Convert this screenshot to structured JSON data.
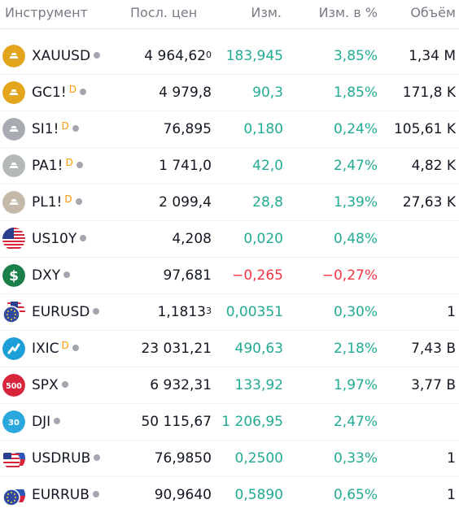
{
  "columns": {
    "symbol": "Инструмент",
    "last": "Посл. цен",
    "change": "Изм.",
    "change_pct": "Изм. в %",
    "volume": "Объём"
  },
  "colors": {
    "positive": "#22ab94",
    "negative": "#f23645",
    "delayed": "#ff9800"
  },
  "rows": [
    {
      "symbol": "XAUUSD",
      "delayed_mark": "",
      "last": "4 964,62",
      "last_sup": "0",
      "change": "183,945",
      "change_pct": "3,85%",
      "volume": "1,34 M",
      "direction": "up",
      "icon": "gold-bars-icon"
    },
    {
      "symbol": "GC1!",
      "delayed_mark": "D",
      "last": "4 979,8",
      "last_sup": "",
      "change": "90,3",
      "change_pct": "1,85%",
      "volume": "171,8 K",
      "direction": "up",
      "icon": "gold-bars-icon"
    },
    {
      "symbol": "SI1!",
      "delayed_mark": "D",
      "last": "76,895",
      "last_sup": "",
      "change": "0,180",
      "change_pct": "0,24%",
      "volume": "105,61 K",
      "direction": "up",
      "icon": "silver-bars-icon"
    },
    {
      "symbol": "PA1!",
      "delayed_mark": "D",
      "last": "1 741,0",
      "last_sup": "",
      "change": "42,0",
      "change_pct": "2,47%",
      "volume": "4,82 K",
      "direction": "up",
      "icon": "palladium-bars-icon"
    },
    {
      "symbol": "PL1!",
      "delayed_mark": "D",
      "last": "2 099,4",
      "last_sup": "",
      "change": "28,8",
      "change_pct": "1,39%",
      "volume": "27,63 K",
      "direction": "up",
      "icon": "platinum-bars-icon"
    },
    {
      "symbol": "US10Y",
      "delayed_mark": "",
      "last": "4,208",
      "last_sup": "",
      "change": "0,020",
      "change_pct": "0,48%",
      "volume": "",
      "direction": "up",
      "icon": "us-flag-icon"
    },
    {
      "symbol": "DXY",
      "delayed_mark": "",
      "last": "97,681",
      "last_sup": "",
      "change": "−0,265",
      "change_pct": "−0,27%",
      "volume": "",
      "direction": "down",
      "icon": "dollar-icon"
    },
    {
      "symbol": "EURUSD",
      "delayed_mark": "",
      "last": "1,1813",
      "last_sup": "3",
      "change": "0,00351",
      "change_pct": "0,30%",
      "volume": "1",
      "direction": "up",
      "icon": "eu-us-flags-icon"
    },
    {
      "symbol": "IXIC",
      "delayed_mark": "D",
      "last": "23 031,21",
      "last_sup": "",
      "change": "490,63",
      "change_pct": "2,18%",
      "volume": "7,43 B",
      "direction": "up",
      "icon": "nasdaq-icon"
    },
    {
      "symbol": "SPX",
      "delayed_mark": "",
      "last": "6 932,31",
      "last_sup": "",
      "change": "133,92",
      "change_pct": "1,97%",
      "volume": "3,77 B",
      "direction": "up",
      "icon": "sp500-icon"
    },
    {
      "symbol": "DJI",
      "delayed_mark": "",
      "last": "50 115,67",
      "last_sup": "",
      "change": "1 206,95",
      "change_pct": "2,47%",
      "volume": "",
      "direction": "up",
      "icon": "dow30-icon"
    },
    {
      "symbol": "USDRUB",
      "delayed_mark": "",
      "last": "76,9850",
      "last_sup": "",
      "change": "0,2500",
      "change_pct": "0,33%",
      "volume": "1",
      "direction": "up",
      "icon": "us-ru-flags-icon"
    },
    {
      "symbol": "EURRUB",
      "delayed_mark": "",
      "last": "90,9640",
      "last_sup": "",
      "change": "0,5890",
      "change_pct": "0,65%",
      "volume": "1",
      "direction": "up",
      "icon": "eu-ru-flags-icon"
    }
  ],
  "logo_text": {
    "sp500": "500",
    "dow30": "30"
  }
}
